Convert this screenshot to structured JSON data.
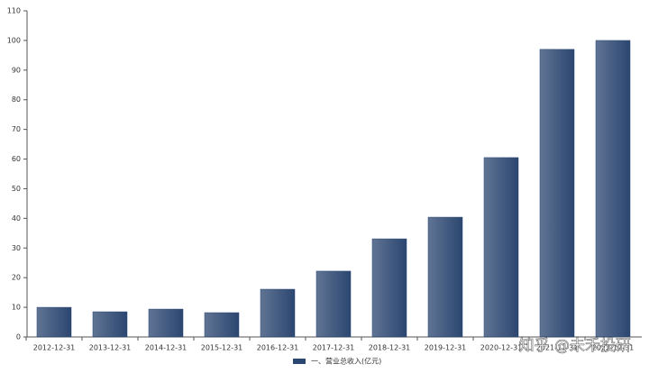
{
  "chart_data": {
    "type": "bar",
    "categories": [
      "2012-12-31",
      "2013-12-31",
      "2014-12-31",
      "2015-12-31",
      "2016-12-31",
      "2017-12-31",
      "2018-12-31",
      "2019-12-31",
      "2020-12-31",
      "2021-12-31",
      "2022-12-31"
    ],
    "series": [
      {
        "name": "一、营业总收入(亿元)",
        "color": "#2b4670",
        "values": [
          10.0,
          8.5,
          9.4,
          8.2,
          16.1,
          22.2,
          33.1,
          40.4,
          60.5,
          97.0,
          100.0
        ]
      }
    ],
    "ylim": [
      0,
      110
    ],
    "yticks": [
      0,
      10,
      20,
      30,
      40,
      50,
      60,
      70,
      80,
      90,
      100,
      110
    ],
    "grid": false,
    "legend": "bottom",
    "watermark": "知乎 @未禾投研"
  }
}
